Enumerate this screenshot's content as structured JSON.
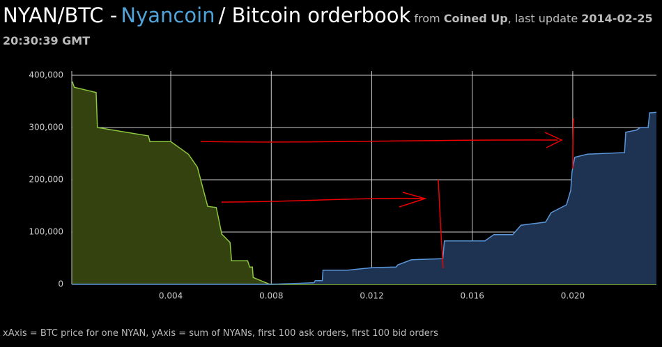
{
  "chart_data": {
    "type": "area",
    "title_parts": {
      "pair": "NYAN/BTC -",
      "coin": "Nyancoin",
      "rest": "/ Bitcoin orderbook",
      "from": "from",
      "source": "Coined Up",
      "update_label": ", last update",
      "update_date": "2014-02-25",
      "update_time": "20:30:39 GMT"
    },
    "footer": "xAxis = BTC price for one NYAN, yAxis = sum of NYANs, first 100 ask orders, first 100 bid orders",
    "xlim": [
      6e-05,
      0.02333
    ],
    "ylim": [
      0,
      408000
    ],
    "xticks": [
      0.004,
      0.008,
      0.012,
      0.016,
      {
        "value": 0.02,
        "label": "0.020"
      }
    ],
    "yticks": [
      0,
      {
        "value": 100000,
        "label": "100,000"
      },
      {
        "value": 200000,
        "label": "200,000"
      },
      {
        "value": 300000,
        "label": "300,000"
      },
      {
        "value": 400000,
        "label": "400,000"
      }
    ],
    "grid": true,
    "series": [
      {
        "color": "#8dc63f",
        "fill": "#34420f",
        "x": [
          8e-05,
          0.00016,
          0.00103,
          0.00108,
          0.00311,
          0.00317,
          0.004,
          0.0047,
          0.00506,
          0.00547,
          0.00581,
          0.00603,
          0.00636,
          0.00642,
          0.00706,
          0.00714,
          0.00725,
          0.00728,
          0.00794,
          0.02333
        ],
        "values": [
          388000,
          377000,
          367000,
          300000,
          284000,
          273000,
          273000,
          249000,
          224000,
          149000,
          147000,
          96000,
          80000,
          45000,
          45000,
          33000,
          33000,
          13000,
          0,
          0
        ]
      },
      {
        "color": "#5a96d8",
        "fill": "#1e3352",
        "x": [
          6e-05,
          0.00803,
          0.0097,
          0.00975,
          0.01003,
          0.01006,
          0.01103,
          0.01206,
          0.01297,
          0.01303,
          0.01358,
          0.01483,
          0.01489,
          0.0165,
          0.01686,
          0.01761,
          0.01794,
          0.01892,
          0.01914,
          0.01975,
          0.01992,
          0.01997,
          0.02008,
          0.02058,
          0.02206,
          0.02211,
          0.02253,
          0.02269,
          0.023,
          0.02306,
          0.02333
        ],
        "values": [
          0,
          0,
          3000,
          7000,
          7000,
          27000,
          27000,
          32000,
          33000,
          37000,
          47000,
          49000,
          83000,
          83000,
          95000,
          95000,
          113000,
          119000,
          137000,
          152000,
          180000,
          215000,
          243000,
          249000,
          252000,
          291000,
          295000,
          300000,
          300000,
          328000,
          329000
        ]
      }
    ]
  }
}
